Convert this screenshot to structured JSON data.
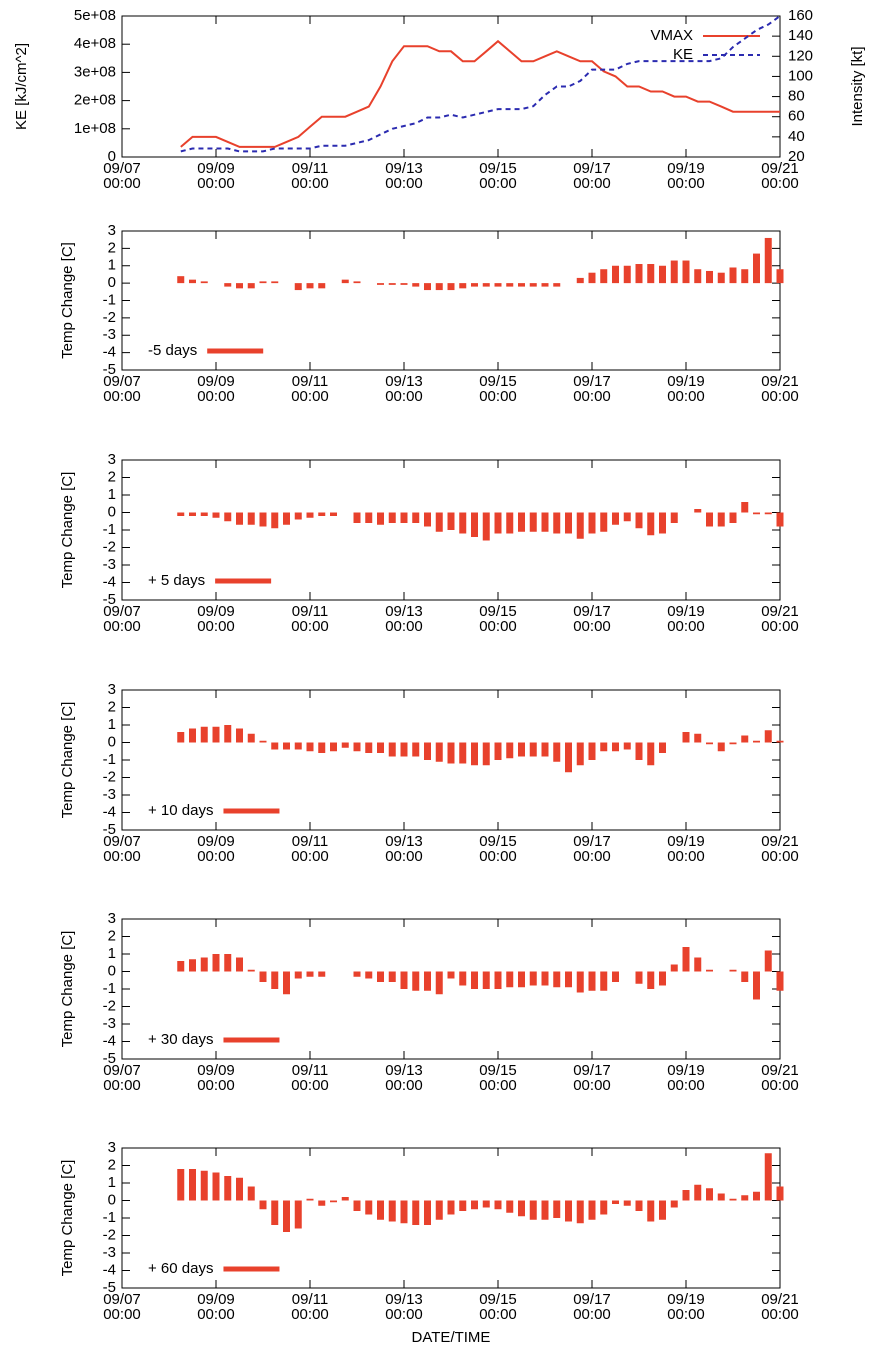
{
  "chart_data": [
    {
      "type": "line",
      "ylabel": "KE [kJ/cm^2]",
      "y2label": "Intensity [kt]",
      "legend": "upper right",
      "x": [
        "09/08 06:00",
        "09/08 12:00",
        "09/08 18:00",
        "09/09 00:00",
        "09/09 06:00",
        "09/09 12:00",
        "09/09 18:00",
        "09/10 00:00",
        "09/10 06:00",
        "09/10 12:00",
        "09/10 18:00",
        "09/11 00:00",
        "09/11 06:00",
        "09/11 12:00",
        "09/11 18:00",
        "09/12 00:00",
        "09/12 06:00",
        "09/12 12:00",
        "09/12 18:00",
        "09/13 00:00",
        "09/13 06:00",
        "09/13 12:00",
        "09/13 18:00",
        "09/14 00:00",
        "09/14 06:00",
        "09/14 12:00",
        "09/14 18:00",
        "09/15 00:00",
        "09/15 06:00",
        "09/15 12:00",
        "09/15 18:00",
        "09/16 00:00",
        "09/16 06:00",
        "09/16 12:00",
        "09/16 18:00",
        "09/17 00:00",
        "09/17 06:00",
        "09/17 12:00",
        "09/17 18:00",
        "09/18 00:00",
        "09/18 06:00",
        "09/18 12:00",
        "09/18 18:00",
        "09/19 00:00",
        "09/19 06:00",
        "09/19 12:00",
        "09/19 18:00",
        "09/20 00:00",
        "09/20 06:00",
        "09/20 12:00",
        "09/20 18:00",
        "09/21 00:00"
      ],
      "xlim": [
        "09/07 00:00",
        "09/21 00:00"
      ],
      "xticks": [
        "09/07 00:00",
        "09/09 00:00",
        "09/11 00:00",
        "09/13 00:00",
        "09/15 00:00",
        "09/17 00:00",
        "09/19 00:00",
        "09/21 00:00"
      ],
      "ylim": [
        0,
        500000000
      ],
      "yticks": [
        0,
        {
          "value": 100000000,
          "label": "1e+08"
        },
        {
          "value": 200000000,
          "label": "2e+08"
        },
        {
          "value": 300000000,
          "label": "3e+08"
        },
        {
          "value": 400000000,
          "label": "4e+08"
        },
        {
          "value": 500000000,
          "label": "5e+08"
        }
      ],
      "y2lim": [
        20,
        160
      ],
      "y2ticks": [
        20,
        40,
        60,
        80,
        100,
        120,
        140,
        160
      ],
      "series": [
        {
          "name": "VMAX",
          "color": "#e8412c",
          "axis": "y2",
          "dashed": false,
          "values": [
            30,
            40,
            40,
            40,
            35,
            30,
            30,
            30,
            30,
            35,
            40,
            50,
            60,
            60,
            60,
            65,
            70,
            90,
            115,
            130,
            130,
            130,
            125,
            125,
            115,
            115,
            125,
            135,
            125,
            115,
            115,
            120,
            125,
            120,
            115,
            115,
            105,
            100,
            90,
            90,
            85,
            85,
            80,
            80,
            75,
            75,
            70,
            65,
            65,
            65,
            65,
            65
          ]
        },
        {
          "name": "KE",
          "color": "#2b2bb0",
          "dashed": true,
          "values": [
            20000000,
            30000000,
            30000000,
            30000000,
            30000000,
            20000000,
            20000000,
            20000000,
            30000000,
            30000000,
            30000000,
            30000000,
            40000000,
            40000000,
            40000000,
            50000000,
            60000000,
            80000000,
            100000000,
            110000000,
            120000000,
            140000000,
            140000000,
            150000000,
            140000000,
            150000000,
            160000000,
            170000000,
            170000000,
            170000000,
            180000000,
            220000000,
            250000000,
            250000000,
            270000000,
            310000000,
            310000000,
            310000000,
            330000000,
            340000000,
            340000000,
            340000000,
            340000000,
            340000000,
            340000000,
            340000000,
            350000000,
            390000000,
            420000000,
            450000000,
            470000000,
            500000000
          ]
        }
      ]
    },
    {
      "type": "bar",
      "ylabel": "Temp Change [C]",
      "legend": "lower left",
      "x": [
        "09/08 06:00",
        "09/08 12:00",
        "09/08 18:00",
        "09/09 00:00",
        "09/09 06:00",
        "09/09 12:00",
        "09/09 18:00",
        "09/10 00:00",
        "09/10 06:00",
        "09/10 12:00",
        "09/10 18:00",
        "09/11 00:00",
        "09/11 06:00",
        "09/11 12:00",
        "09/11 18:00",
        "09/12 00:00",
        "09/12 06:00",
        "09/12 12:00",
        "09/12 18:00",
        "09/13 00:00",
        "09/13 06:00",
        "09/13 12:00",
        "09/13 18:00",
        "09/14 00:00",
        "09/14 06:00",
        "09/14 12:00",
        "09/14 18:00",
        "09/15 00:00",
        "09/15 06:00",
        "09/15 12:00",
        "09/15 18:00",
        "09/16 00:00",
        "09/16 06:00",
        "09/16 12:00",
        "09/16 18:00",
        "09/17 00:00",
        "09/17 06:00",
        "09/17 12:00",
        "09/17 18:00",
        "09/18 00:00",
        "09/18 06:00",
        "09/18 12:00",
        "09/18 18:00",
        "09/19 00:00",
        "09/19 06:00",
        "09/19 12:00",
        "09/19 18:00",
        "09/20 00:00",
        "09/20 06:00",
        "09/20 12:00",
        "09/20 18:00",
        "09/21 00:00"
      ],
      "xlim": [
        "09/07 00:00",
        "09/21 00:00"
      ],
      "xticks": [
        "09/07 00:00",
        "09/09 00:00",
        "09/11 00:00",
        "09/13 00:00",
        "09/15 00:00",
        "09/17 00:00",
        "09/19 00:00",
        "09/21 00:00"
      ],
      "ylim": [
        -5,
        3
      ],
      "yticks": [
        -5,
        -4,
        -3,
        -2,
        -1,
        0,
        1,
        2,
        3
      ],
      "series": [
        {
          "name": "-5 days",
          "color": "#e8412c",
          "values": [
            0.4,
            0.2,
            0.1,
            0,
            -0.2,
            -0.3,
            -0.3,
            0.1,
            0.1,
            0,
            -0.4,
            -0.3,
            -0.3,
            0,
            0.2,
            0.1,
            0,
            -0.1,
            -0.1,
            -0.1,
            -0.2,
            -0.4,
            -0.4,
            -0.4,
            -0.3,
            -0.2,
            -0.2,
            -0.2,
            -0.2,
            -0.2,
            -0.2,
            -0.2,
            -0.2,
            0,
            0.3,
            0.6,
            0.8,
            1.0,
            1.0,
            1.1,
            1.1,
            1.0,
            1.3,
            1.3,
            0.8,
            0.7,
            0.6,
            0.9,
            0.8,
            1.7,
            2.6,
            0.8
          ]
        }
      ]
    },
    {
      "type": "bar",
      "ylabel": "Temp Change [C]",
      "legend": "lower left",
      "x": [
        "09/08 06:00",
        "09/08 12:00",
        "09/08 18:00",
        "09/09 00:00",
        "09/09 06:00",
        "09/09 12:00",
        "09/09 18:00",
        "09/10 00:00",
        "09/10 06:00",
        "09/10 12:00",
        "09/10 18:00",
        "09/11 00:00",
        "09/11 06:00",
        "09/11 12:00",
        "09/11 18:00",
        "09/12 00:00",
        "09/12 06:00",
        "09/12 12:00",
        "09/12 18:00",
        "09/13 00:00",
        "09/13 06:00",
        "09/13 12:00",
        "09/13 18:00",
        "09/14 00:00",
        "09/14 06:00",
        "09/14 12:00",
        "09/14 18:00",
        "09/15 00:00",
        "09/15 06:00",
        "09/15 12:00",
        "09/15 18:00",
        "09/16 00:00",
        "09/16 06:00",
        "09/16 12:00",
        "09/16 18:00",
        "09/17 00:00",
        "09/17 06:00",
        "09/17 12:00",
        "09/17 18:00",
        "09/18 00:00",
        "09/18 06:00",
        "09/18 12:00",
        "09/18 18:00",
        "09/19 00:00",
        "09/19 06:00",
        "09/19 12:00",
        "09/19 18:00",
        "09/20 00:00",
        "09/20 06:00",
        "09/20 12:00",
        "09/20 18:00",
        "09/21 00:00"
      ],
      "xlim": [
        "09/07 00:00",
        "09/21 00:00"
      ],
      "xticks": [
        "09/07 00:00",
        "09/09 00:00",
        "09/11 00:00",
        "09/13 00:00",
        "09/15 00:00",
        "09/17 00:00",
        "09/19 00:00",
        "09/21 00:00"
      ],
      "ylim": [
        -5,
        3
      ],
      "yticks": [
        -5,
        -4,
        -3,
        -2,
        -1,
        0,
        1,
        2,
        3
      ],
      "series": [
        {
          "name": "+ 5 days",
          "color": "#e8412c",
          "values": [
            -0.2,
            -0.2,
            -0.2,
            -0.3,
            -0.5,
            -0.7,
            -0.7,
            -0.8,
            -0.9,
            -0.7,
            -0.4,
            -0.3,
            -0.2,
            -0.2,
            0,
            -0.6,
            -0.6,
            -0.7,
            -0.6,
            -0.6,
            -0.6,
            -0.8,
            -1.1,
            -1.0,
            -1.2,
            -1.4,
            -1.6,
            -1.2,
            -1.2,
            -1.1,
            -1.1,
            -1.1,
            -1.2,
            -1.2,
            -1.5,
            -1.2,
            -1.1,
            -0.7,
            -0.5,
            -0.9,
            -1.3,
            -1.2,
            -0.6,
            0,
            0.2,
            -0.8,
            -0.8,
            -0.6,
            0.6,
            -0.1,
            -0.1,
            -0.8
          ]
        }
      ]
    },
    {
      "type": "bar",
      "ylabel": "Temp Change [C]",
      "legend": "lower left",
      "x": [
        "09/08 06:00",
        "09/08 12:00",
        "09/08 18:00",
        "09/09 00:00",
        "09/09 06:00",
        "09/09 12:00",
        "09/09 18:00",
        "09/10 00:00",
        "09/10 06:00",
        "09/10 12:00",
        "09/10 18:00",
        "09/11 00:00",
        "09/11 06:00",
        "09/11 12:00",
        "09/11 18:00",
        "09/12 00:00",
        "09/12 06:00",
        "09/12 12:00",
        "09/12 18:00",
        "09/13 00:00",
        "09/13 06:00",
        "09/13 12:00",
        "09/13 18:00",
        "09/14 00:00",
        "09/14 06:00",
        "09/14 12:00",
        "09/14 18:00",
        "09/15 00:00",
        "09/15 06:00",
        "09/15 12:00",
        "09/15 18:00",
        "09/16 00:00",
        "09/16 06:00",
        "09/16 12:00",
        "09/16 18:00",
        "09/17 00:00",
        "09/17 06:00",
        "09/17 12:00",
        "09/17 18:00",
        "09/18 00:00",
        "09/18 06:00",
        "09/18 12:00",
        "09/18 18:00",
        "09/19 00:00",
        "09/19 06:00",
        "09/19 12:00",
        "09/19 18:00",
        "09/20 00:00",
        "09/20 06:00",
        "09/20 12:00",
        "09/20 18:00",
        "09/21 00:00"
      ],
      "xlim": [
        "09/07 00:00",
        "09/21 00:00"
      ],
      "xticks": [
        "09/07 00:00",
        "09/09 00:00",
        "09/11 00:00",
        "09/13 00:00",
        "09/15 00:00",
        "09/17 00:00",
        "09/19 00:00",
        "09/21 00:00"
      ],
      "ylim": [
        -5,
        3
      ],
      "yticks": [
        -5,
        -4,
        -3,
        -2,
        -1,
        0,
        1,
        2,
        3
      ],
      "series": [
        {
          "name": "+ 10 days",
          "color": "#e8412c",
          "values": [
            0.6,
            0.8,
            0.9,
            0.9,
            1.0,
            0.8,
            0.5,
            0.1,
            -0.4,
            -0.4,
            -0.4,
            -0.5,
            -0.6,
            -0.5,
            -0.3,
            -0.5,
            -0.6,
            -0.6,
            -0.8,
            -0.8,
            -0.8,
            -1.0,
            -1.1,
            -1.2,
            -1.2,
            -1.3,
            -1.3,
            -1.0,
            -0.9,
            -0.8,
            -0.8,
            -0.8,
            -1.1,
            -1.7,
            -1.3,
            -1.0,
            -0.5,
            -0.5,
            -0.4,
            -1.0,
            -1.3,
            -0.6,
            0,
            0.6,
            0.5,
            -0.1,
            -0.5,
            -0.1,
            0.4,
            0.1,
            0.7,
            0.1
          ]
        }
      ]
    },
    {
      "type": "bar",
      "ylabel": "Temp Change [C]",
      "legend": "lower left",
      "x": [
        "09/08 06:00",
        "09/08 12:00",
        "09/08 18:00",
        "09/09 00:00",
        "09/09 06:00",
        "09/09 12:00",
        "09/09 18:00",
        "09/10 00:00",
        "09/10 06:00",
        "09/10 12:00",
        "09/10 18:00",
        "09/11 00:00",
        "09/11 06:00",
        "09/11 12:00",
        "09/11 18:00",
        "09/12 00:00",
        "09/12 06:00",
        "09/12 12:00",
        "09/12 18:00",
        "09/13 00:00",
        "09/13 06:00",
        "09/13 12:00",
        "09/13 18:00",
        "09/14 00:00",
        "09/14 06:00",
        "09/14 12:00",
        "09/14 18:00",
        "09/15 00:00",
        "09/15 06:00",
        "09/15 12:00",
        "09/15 18:00",
        "09/16 00:00",
        "09/16 06:00",
        "09/16 12:00",
        "09/16 18:00",
        "09/17 00:00",
        "09/17 06:00",
        "09/17 12:00",
        "09/17 18:00",
        "09/18 00:00",
        "09/18 06:00",
        "09/18 12:00",
        "09/18 18:00",
        "09/19 00:00",
        "09/19 06:00",
        "09/19 12:00",
        "09/19 18:00",
        "09/20 00:00",
        "09/20 06:00",
        "09/20 12:00",
        "09/20 18:00",
        "09/21 00:00"
      ],
      "xlim": [
        "09/07 00:00",
        "09/21 00:00"
      ],
      "xticks": [
        "09/07 00:00",
        "09/09 00:00",
        "09/11 00:00",
        "09/13 00:00",
        "09/15 00:00",
        "09/17 00:00",
        "09/19 00:00",
        "09/21 00:00"
      ],
      "ylim": [
        -5,
        3
      ],
      "yticks": [
        -5,
        -4,
        -3,
        -2,
        -1,
        0,
        1,
        2,
        3
      ],
      "series": [
        {
          "name": "+ 30 days",
          "color": "#e8412c",
          "values": [
            0.6,
            0.7,
            0.8,
            1.0,
            1.0,
            0.8,
            0.1,
            -0.6,
            -1.0,
            -1.3,
            -0.4,
            -0.3,
            -0.3,
            0,
            0,
            -0.3,
            -0.4,
            -0.6,
            -0.6,
            -1.0,
            -1.1,
            -1.1,
            -1.3,
            -0.4,
            -0.8,
            -1.0,
            -1.0,
            -1.0,
            -0.9,
            -0.9,
            -0.8,
            -0.8,
            -0.9,
            -0.9,
            -1.2,
            -1.1,
            -1.1,
            -0.6,
            0,
            -0.7,
            -1.0,
            -0.8,
            0.4,
            1.4,
            0.8,
            0.1,
            0,
            0.1,
            -0.6,
            -1.6,
            1.2,
            -1.1
          ]
        }
      ]
    },
    {
      "type": "bar",
      "ylabel": "Temp Change [C]",
      "xlabel": "DATE/TIME",
      "legend": "lower left",
      "x": [
        "09/08 06:00",
        "09/08 12:00",
        "09/08 18:00",
        "09/09 00:00",
        "09/09 06:00",
        "09/09 12:00",
        "09/09 18:00",
        "09/10 00:00",
        "09/10 06:00",
        "09/10 12:00",
        "09/10 18:00",
        "09/11 00:00",
        "09/11 06:00",
        "09/11 12:00",
        "09/11 18:00",
        "09/12 00:00",
        "09/12 06:00",
        "09/12 12:00",
        "09/12 18:00",
        "09/13 00:00",
        "09/13 06:00",
        "09/13 12:00",
        "09/13 18:00",
        "09/14 00:00",
        "09/14 06:00",
        "09/14 12:00",
        "09/14 18:00",
        "09/15 00:00",
        "09/15 06:00",
        "09/15 12:00",
        "09/15 18:00",
        "09/16 00:00",
        "09/16 06:00",
        "09/16 12:00",
        "09/16 18:00",
        "09/17 00:00",
        "09/17 06:00",
        "09/17 12:00",
        "09/17 18:00",
        "09/18 00:00",
        "09/18 06:00",
        "09/18 12:00",
        "09/18 18:00",
        "09/19 00:00",
        "09/19 06:00",
        "09/19 12:00",
        "09/19 18:00",
        "09/20 00:00",
        "09/20 06:00",
        "09/20 12:00",
        "09/20 18:00",
        "09/21 00:00"
      ],
      "xlim": [
        "09/07 00:00",
        "09/21 00:00"
      ],
      "xticks": [
        "09/07 00:00",
        "09/09 00:00",
        "09/11 00:00",
        "09/13 00:00",
        "09/15 00:00",
        "09/17 00:00",
        "09/19 00:00",
        "09/21 00:00"
      ],
      "ylim": [
        -5,
        3
      ],
      "yticks": [
        -5,
        -4,
        -3,
        -2,
        -1,
        0,
        1,
        2,
        3
      ],
      "series": [
        {
          "name": "+ 60 days",
          "color": "#e8412c",
          "values": [
            1.8,
            1.8,
            1.7,
            1.6,
            1.4,
            1.3,
            0.8,
            -0.5,
            -1.4,
            -1.8,
            -1.6,
            0.1,
            -0.3,
            -0.1,
            0.2,
            -0.6,
            -0.8,
            -1.1,
            -1.2,
            -1.3,
            -1.4,
            -1.4,
            -1.1,
            -0.8,
            -0.6,
            -0.5,
            -0.4,
            -0.5,
            -0.7,
            -0.9,
            -1.1,
            -1.1,
            -1.0,
            -1.2,
            -1.3,
            -1.1,
            -0.8,
            -0.2,
            -0.3,
            -0.6,
            -1.2,
            -1.1,
            -0.4,
            0.6,
            0.9,
            0.7,
            0.4,
            0.1,
            0.3,
            0.5,
            2.7,
            0.8
          ]
        }
      ]
    }
  ]
}
